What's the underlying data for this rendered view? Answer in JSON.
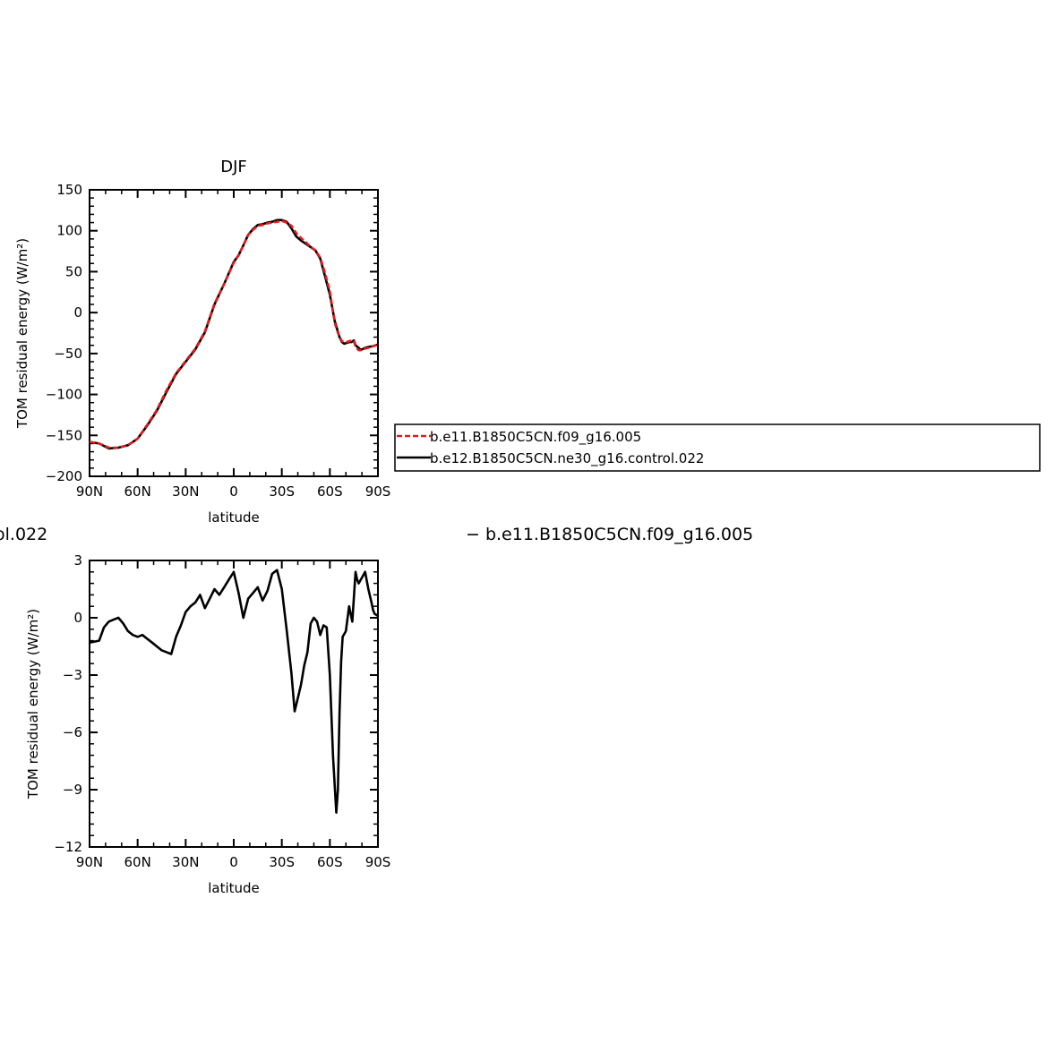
{
  "colors": {
    "red": "#e41a1c",
    "black": "#000000",
    "background": "#ffffff"
  },
  "legend": {
    "entries": [
      {
        "label": "b.e11.B1850C5CN.f09_g16.005",
        "color": "#e41a1c",
        "dash": "dashed"
      },
      {
        "label": "b.e12.B1850C5CN.ne30_g16.control.022",
        "color": "#000000",
        "dash": "solid"
      }
    ]
  },
  "diff_title": {
    "left": "ol.022",
    "right": "− b.e11.B1850C5CN.f09_g16.005"
  },
  "chart_data": [
    {
      "type": "line",
      "title": "DJF",
      "xlabel": "latitude",
      "ylabel": "TOM residual energy (W/m²)",
      "xlim": [
        -90,
        90
      ],
      "ylim": [
        -200,
        150
      ],
      "xticks": [
        -90,
        -60,
        -30,
        0,
        30,
        60,
        90
      ],
      "xticklabels": [
        "90N",
        "60N",
        "30N",
        "0",
        "30S",
        "60S",
        "90S"
      ],
      "yticks": [
        150,
        100,
        50,
        0,
        -50,
        -100,
        -150,
        -200
      ],
      "yticklabels": [
        "150",
        "100",
        "50",
        "0",
        "−50",
        "−100",
        "−150",
        "−200"
      ],
      "grid": false,
      "series": [
        {
          "name": "b.e12.B1850C5CN.ne30_g16.control.022",
          "color": "#000000",
          "dash": "solid",
          "x": [
            -90,
            -84,
            -78,
            -72,
            -66,
            -60,
            -54,
            -48,
            -42,
            -36,
            -30,
            -24,
            -18,
            -12,
            -6,
            0,
            3,
            6,
            9,
            12,
            15,
            18,
            21,
            24,
            27,
            30,
            33,
            36,
            39,
            42,
            45,
            48,
            51,
            54,
            57,
            60,
            63,
            64.5,
            66,
            67.5,
            69,
            70.5,
            72,
            73.5,
            75,
            76,
            78,
            79,
            80,
            82,
            84,
            87,
            90
          ],
          "y": [
            -158,
            -160,
            -166,
            -165,
            -162,
            -154,
            -138,
            -120,
            -97,
            -75,
            -60,
            -45,
            -24,
            10,
            35,
            62,
            70,
            82,
            95,
            102,
            107,
            108,
            110,
            111,
            113,
            113,
            111,
            103,
            93,
            88,
            84,
            80,
            76,
            66,
            44,
            22,
            -10,
            -20,
            -30,
            -36,
            -38,
            -37,
            -36,
            -36,
            -34,
            -40,
            -43,
            -45,
            -45,
            -43,
            -42,
            -41,
            -39
          ]
        },
        {
          "name": "b.e11.B1850C5CN.f09_g16.005",
          "color": "#e41a1c",
          "dash": "dashed",
          "x": [
            -90,
            -84,
            -78,
            -72,
            -66,
            -60,
            -54,
            -48,
            -42,
            -36,
            -30,
            -24,
            -18,
            -12,
            -6,
            0,
            3,
            6,
            9,
            12,
            15,
            18,
            21,
            24,
            27,
            30,
            33,
            36,
            39,
            42,
            45,
            48,
            51,
            54,
            57,
            60,
            63,
            64.5,
            66,
            67.5,
            69,
            70.5,
            72,
            73.5,
            75,
            76,
            78,
            79,
            80,
            82,
            84,
            87,
            90
          ],
          "y": [
            -158,
            -160,
            -165,
            -165,
            -162,
            -154,
            -137,
            -119,
            -95,
            -74,
            -59,
            -44,
            -23,
            11,
            35,
            61,
            70,
            82,
            95,
            101,
            106,
            107,
            109,
            110,
            111,
            112,
            110,
            106,
            97,
            91,
            86,
            80,
            76,
            67,
            48,
            26,
            -12,
            -22,
            -30,
            -35,
            -36,
            -36,
            -35,
            -34,
            -35,
            -42,
            -46,
            -46,
            -45,
            -44,
            -43,
            -41,
            -39
          ]
        }
      ]
    },
    {
      "type": "line",
      "xlabel": "latitude",
      "ylabel": "TOM residual energy (W/m²)",
      "xlim": [
        -90,
        90
      ],
      "ylim": [
        -12,
        3
      ],
      "xticks": [
        -90,
        -60,
        -30,
        0,
        30,
        60,
        90
      ],
      "xticklabels": [
        "90N",
        "60N",
        "30N",
        "0",
        "30S",
        "60S",
        "90S"
      ],
      "yticks": [
        3,
        0,
        -3,
        -6,
        -9,
        -12
      ],
      "yticklabels": [
        "3",
        "0",
        "−3",
        "−6",
        "−9",
        "−12"
      ],
      "grid": false,
      "series": [
        {
          "color": "#000000",
          "dash": "solid",
          "x": [
            -90,
            -84,
            -81,
            -78,
            -75,
            -72,
            -69,
            -66,
            -63,
            -60,
            -57,
            -54,
            -51,
            -48,
            -45,
            -42,
            -39,
            -36,
            -33,
            -30,
            -27,
            -24,
            -21,
            -18,
            -15,
            -12,
            -9,
            -6,
            -3,
            0,
            3,
            6,
            9,
            12,
            15,
            18,
            21,
            24,
            27,
            30,
            33,
            36,
            38,
            40,
            42,
            44,
            46,
            48,
            50,
            52,
            54,
            56,
            58,
            60,
            62,
            64,
            65,
            66,
            67,
            68,
            70,
            72,
            74,
            76,
            77,
            78,
            80,
            82,
            84,
            86,
            87,
            88,
            90
          ],
          "y": [
            -1.3,
            -1.2,
            -0.5,
            -0.2,
            -0.1,
            0.0,
            -0.3,
            -0.7,
            -0.9,
            -1.0,
            -0.9,
            -1.1,
            -1.3,
            -1.5,
            -1.7,
            -1.8,
            -1.9,
            -1.0,
            -0.4,
            0.3,
            0.6,
            0.8,
            1.2,
            0.5,
            1.0,
            1.5,
            1.2,
            1.6,
            2.0,
            2.4,
            1.3,
            0.0,
            1.0,
            1.3,
            1.6,
            0.9,
            1.4,
            2.3,
            2.5,
            1.5,
            -0.6,
            -2.9,
            -4.9,
            -4.2,
            -3.5,
            -2.5,
            -1.8,
            -0.3,
            0.0,
            -0.2,
            -0.9,
            -0.4,
            -0.5,
            -3.0,
            -7.3,
            -10.2,
            -9.0,
            -5.0,
            -2.3,
            -1.0,
            -0.7,
            0.6,
            -0.2,
            2.4,
            2.0,
            1.8,
            2.1,
            2.4,
            1.5,
            0.8,
            0.4,
            0.2,
            0.1
          ]
        }
      ]
    }
  ]
}
